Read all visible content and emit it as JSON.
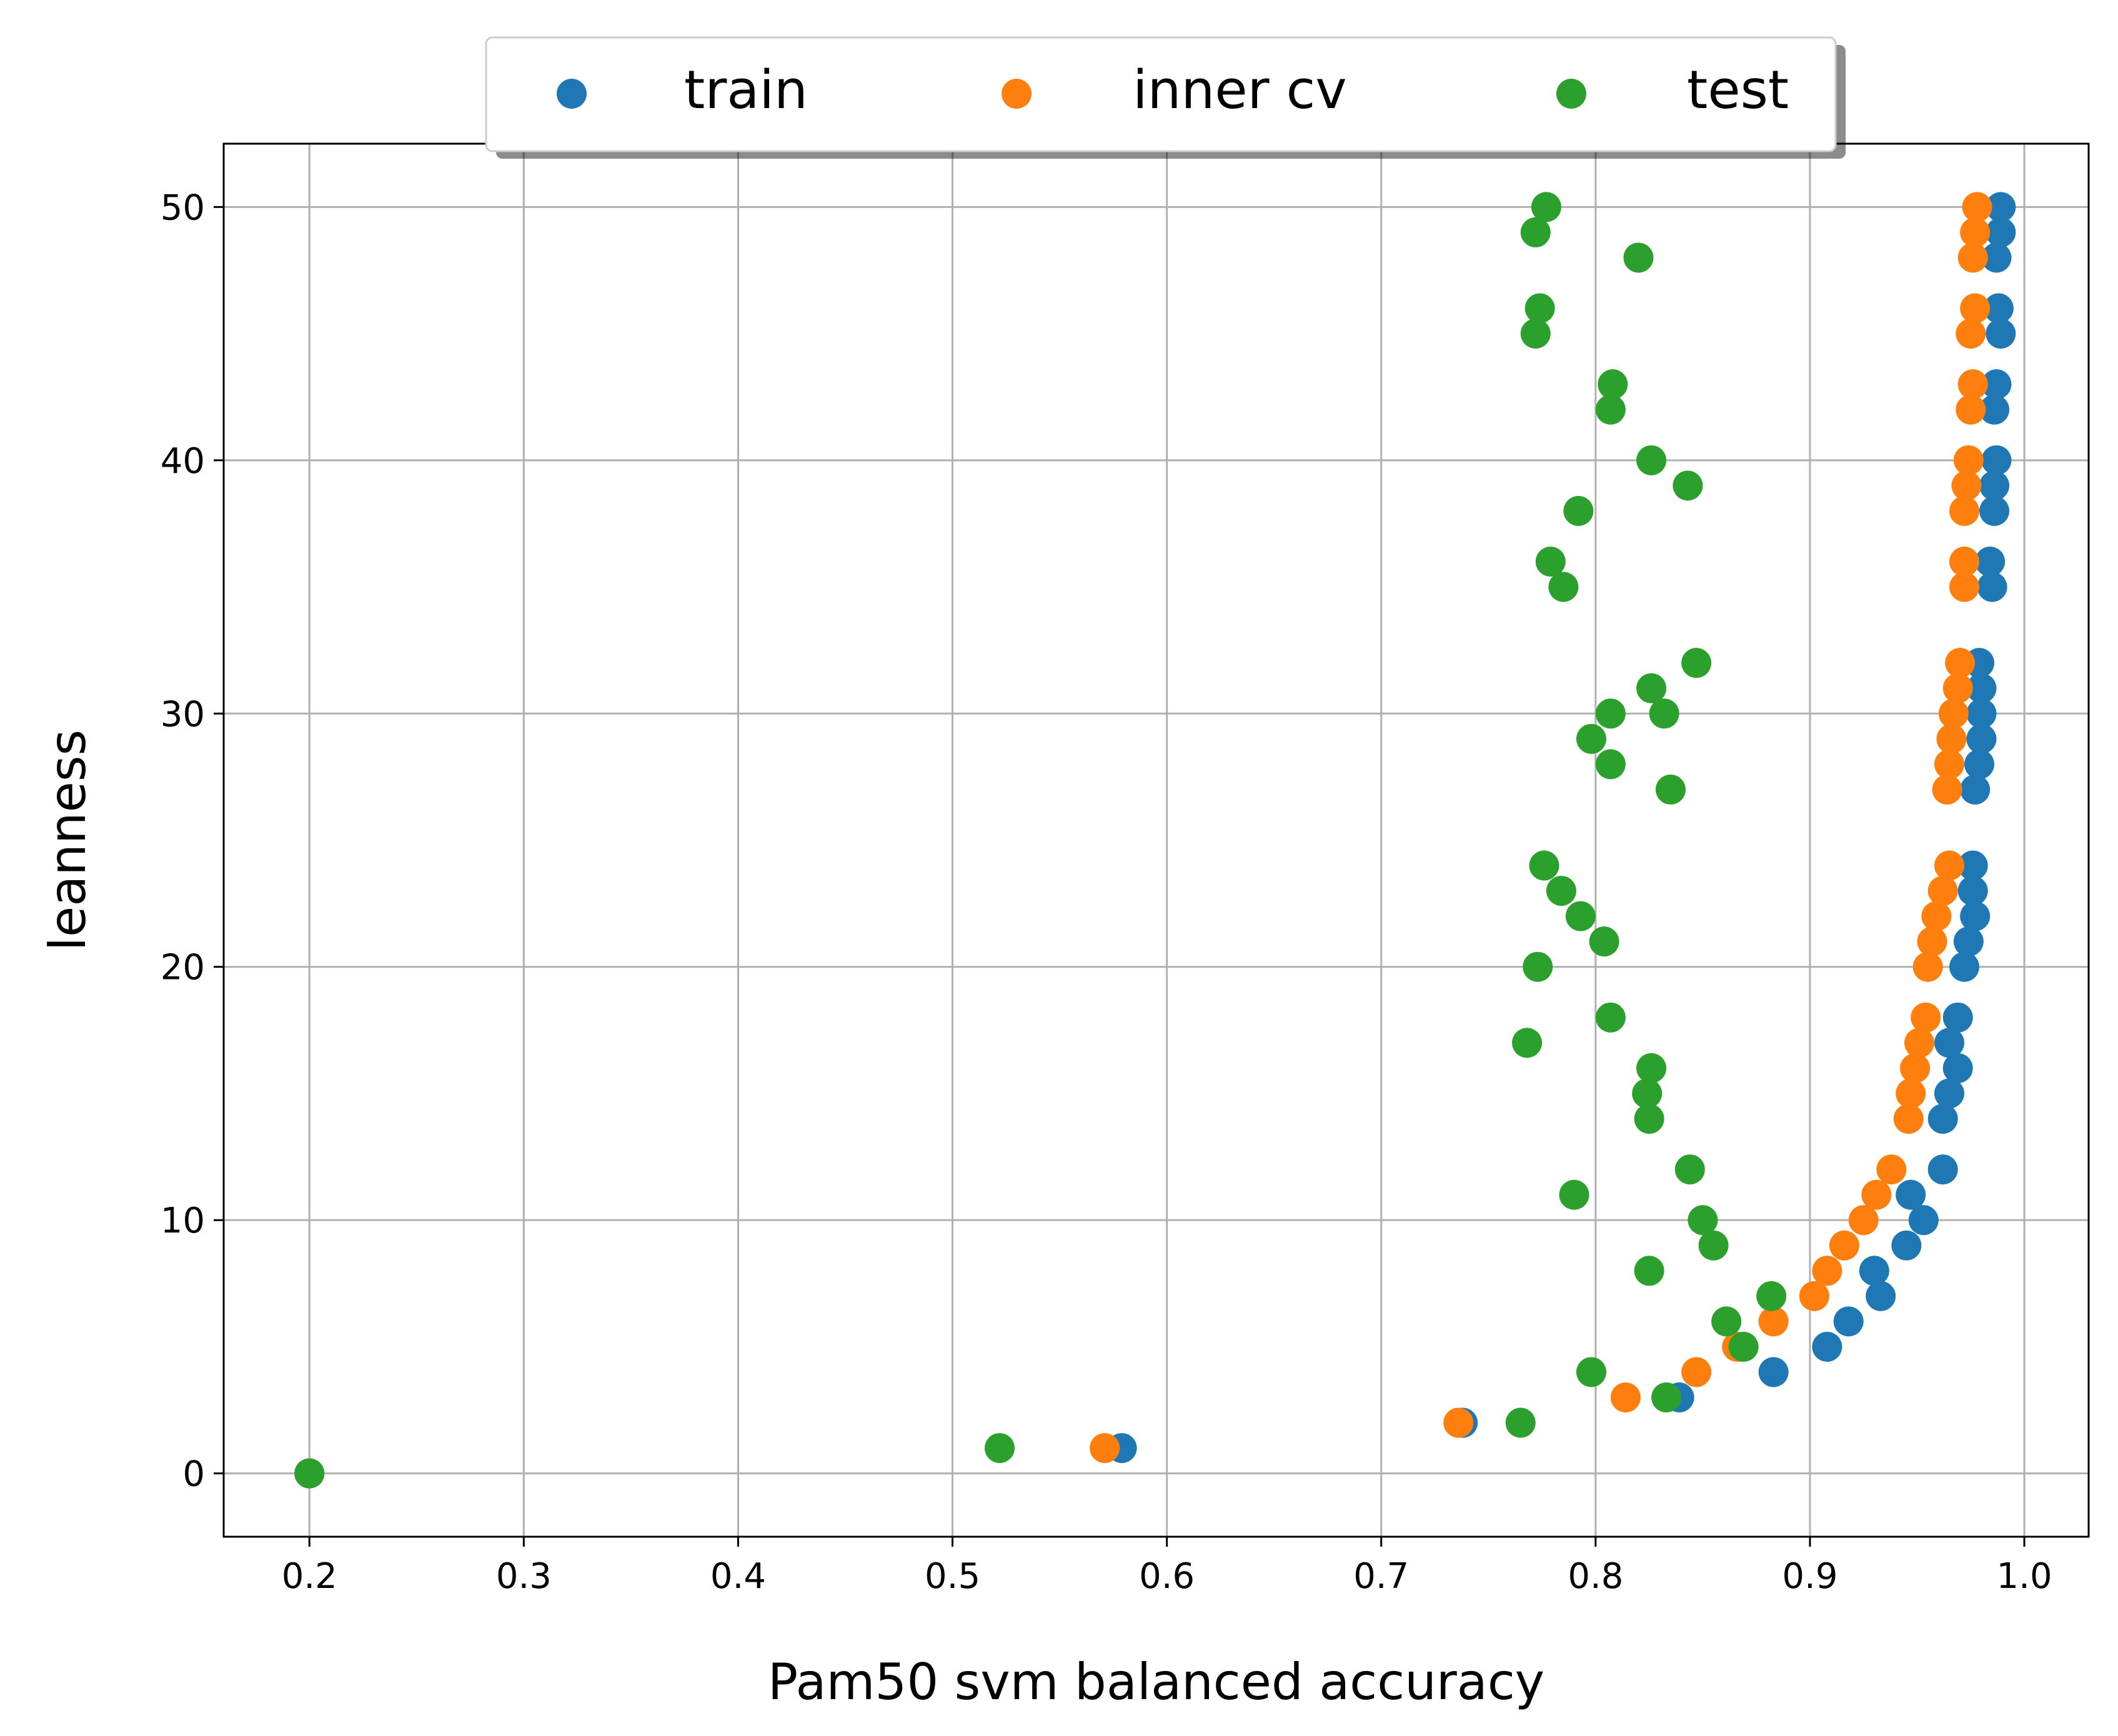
{
  "chart_data": {
    "type": "scatter",
    "xlabel": "Pam50 svm balanced accuracy",
    "ylabel": "leanness",
    "xlim": [
      0.16,
      1.03
    ],
    "ylim": [
      -2.5,
      52.5
    ],
    "xticks": [
      0.2,
      0.3,
      0.4,
      0.5,
      0.6,
      0.7,
      0.8,
      0.9,
      1.0
    ],
    "xtick_labels": [
      "0.2",
      "0.3",
      "0.4",
      "0.5",
      "0.6",
      "0.7",
      "0.8",
      "0.9",
      "1.0"
    ],
    "yticks": [
      0,
      10,
      20,
      30,
      40,
      50
    ],
    "ytick_labels": [
      "0",
      "10",
      "20",
      "30",
      "40",
      "50"
    ],
    "grid": true,
    "legend_position": "top-center",
    "series": [
      {
        "name": "train",
        "color": "#1f77b4",
        "points": [
          [
            0.2,
            0
          ],
          [
            0.579,
            1
          ],
          [
            0.738,
            2
          ],
          [
            0.839,
            3
          ],
          [
            0.883,
            4
          ],
          [
            0.908,
            5
          ],
          [
            0.918,
            6
          ],
          [
            0.933,
            7
          ],
          [
            0.93,
            8
          ],
          [
            0.945,
            9
          ],
          [
            0.953,
            10
          ],
          [
            0.947,
            11
          ],
          [
            0.962,
            12
          ],
          [
            0.962,
            14
          ],
          [
            0.965,
            15
          ],
          [
            0.969,
            16
          ],
          [
            0.965,
            17
          ],
          [
            0.969,
            18
          ],
          [
            0.972,
            20
          ],
          [
            0.974,
            21
          ],
          [
            0.977,
            22
          ],
          [
            0.976,
            23
          ],
          [
            0.976,
            24
          ],
          [
            0.977,
            27
          ],
          [
            0.979,
            28
          ],
          [
            0.98,
            29
          ],
          [
            0.98,
            30
          ],
          [
            0.98,
            31
          ],
          [
            0.979,
            32
          ],
          [
            0.985,
            35
          ],
          [
            0.984,
            36
          ],
          [
            0.986,
            38
          ],
          [
            0.986,
            39
          ],
          [
            0.987,
            40
          ],
          [
            0.986,
            42
          ],
          [
            0.987,
            43
          ],
          [
            0.989,
            45
          ],
          [
            0.988,
            46
          ],
          [
            0.987,
            48
          ],
          [
            0.989,
            49
          ],
          [
            0.989,
            50
          ]
        ]
      },
      {
        "name": "inner cv",
        "color": "#ff7f0e",
        "points": [
          [
            0.2,
            0
          ],
          [
            0.571,
            1
          ],
          [
            0.736,
            2
          ],
          [
            0.814,
            3
          ],
          [
            0.847,
            4
          ],
          [
            0.866,
            5
          ],
          [
            0.883,
            6
          ],
          [
            0.902,
            7
          ],
          [
            0.908,
            8
          ],
          [
            0.916,
            9
          ],
          [
            0.925,
            10
          ],
          [
            0.931,
            11
          ],
          [
            0.938,
            12
          ],
          [
            0.946,
            14
          ],
          [
            0.947,
            15
          ],
          [
            0.949,
            16
          ],
          [
            0.951,
            17
          ],
          [
            0.954,
            18
          ],
          [
            0.955,
            20
          ],
          [
            0.957,
            21
          ],
          [
            0.959,
            22
          ],
          [
            0.962,
            23
          ],
          [
            0.965,
            24
          ],
          [
            0.964,
            27
          ],
          [
            0.965,
            28
          ],
          [
            0.966,
            29
          ],
          [
            0.967,
            30
          ],
          [
            0.969,
            31
          ],
          [
            0.97,
            32
          ],
          [
            0.972,
            35
          ],
          [
            0.972,
            36
          ],
          [
            0.972,
            38
          ],
          [
            0.973,
            39
          ],
          [
            0.974,
            40
          ],
          [
            0.975,
            42
          ],
          [
            0.976,
            43
          ],
          [
            0.975,
            45
          ],
          [
            0.977,
            46
          ],
          [
            0.976,
            48
          ],
          [
            0.977,
            49
          ],
          [
            0.978,
            50
          ]
        ]
      },
      {
        "name": "test",
        "color": "#2ca02c",
        "points": [
          [
            0.2,
            0
          ],
          [
            0.522,
            1
          ],
          [
            0.765,
            2
          ],
          [
            0.833,
            3
          ],
          [
            0.798,
            4
          ],
          [
            0.869,
            5
          ],
          [
            0.861,
            6
          ],
          [
            0.882,
            7
          ],
          [
            0.825,
            8
          ],
          [
            0.855,
            9
          ],
          [
            0.85,
            10
          ],
          [
            0.79,
            11
          ],
          [
            0.844,
            12
          ],
          [
            0.825,
            14
          ],
          [
            0.824,
            15
          ],
          [
            0.826,
            16
          ],
          [
            0.768,
            17
          ],
          [
            0.807,
            18
          ],
          [
            0.773,
            20
          ],
          [
            0.804,
            21
          ],
          [
            0.793,
            22
          ],
          [
            0.784,
            23
          ],
          [
            0.776,
            24
          ],
          [
            0.835,
            27
          ],
          [
            0.807,
            28
          ],
          [
            0.798,
            29
          ],
          [
            0.807,
            30
          ],
          [
            0.832,
            30
          ],
          [
            0.826,
            31
          ],
          [
            0.847,
            32
          ],
          [
            0.785,
            35
          ],
          [
            0.779,
            36
          ],
          [
            0.792,
            38
          ],
          [
            0.843,
            39
          ],
          [
            0.826,
            40
          ],
          [
            0.807,
            42
          ],
          [
            0.808,
            43
          ],
          [
            0.772,
            45
          ],
          [
            0.774,
            46
          ],
          [
            0.82,
            48
          ],
          [
            0.772,
            49
          ],
          [
            0.777,
            50
          ]
        ]
      }
    ]
  }
}
